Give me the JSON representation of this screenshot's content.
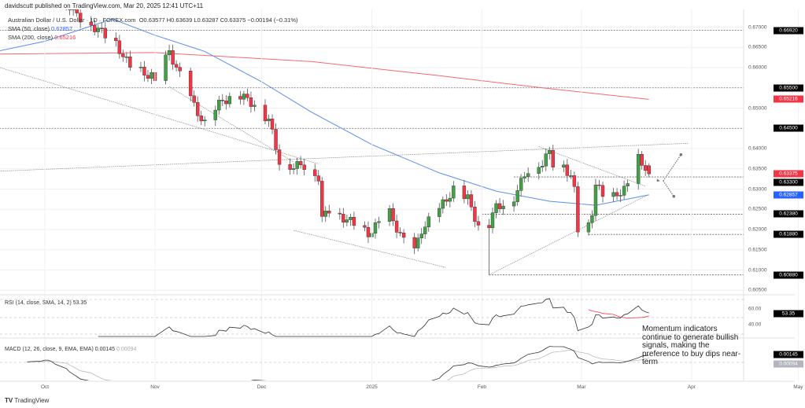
{
  "header": {
    "published": "davidscutt published on TradingView.com, Mar 20, 2025 12:41 UTC+11"
  },
  "legend": {
    "symbol": "Australian Dollar / U.S. Dollar · 1D · FOREX.com",
    "ohlc": "O0.63577 H0.63639 L0.63287 C0.63375 −0.00194 (−0.31%)",
    "sma50_label": "SMA (50, close)",
    "sma50_value": "0.62857",
    "sma200_label": "SMA (200, close)",
    "sma200_value": "0.65216"
  },
  "rsi": {
    "label": "RSI (14, close, SMA, 14, 2)",
    "value": "53.35",
    "ticks": [
      "60.00",
      "40.00"
    ]
  },
  "macd": {
    "label": "MACD (12, 26, close, 9, EMA, EMA)",
    "value": "0.00145",
    "signal": "0.00094"
  },
  "annotation": "Momentum indicators continue to generate bullish signals, making the preference to buy dips near-term",
  "footer": "TradingView",
  "colors": {
    "up": "#43a047",
    "down": "#f23645",
    "sma50": "#5b8def",
    "sma200": "#f26b6b",
    "tag": "#000000"
  },
  "chart_data": {
    "type": "candlestick",
    "price_ticks": [
      "0.67000",
      "0.66500",
      "0.66000",
      "0.65000",
      "0.64000",
      "0.63500",
      "0.63000",
      "0.62500",
      "0.62000",
      "0.61500",
      "0.61000",
      "0.60500"
    ],
    "level_tags": [
      {
        "v": "0.66920",
        "c": "#000000"
      },
      {
        "v": "0.65500",
        "c": "#000000"
      },
      {
        "v": "0.65216",
        "c": "#f23645"
      },
      {
        "v": "0.64500",
        "c": "#000000"
      },
      {
        "v": "0.63375",
        "c": "#f23645"
      },
      {
        "v": "0.63300",
        "c": "#000000"
      },
      {
        "v": "0.62857",
        "c": "#2962ff"
      },
      {
        "v": "0.62380",
        "c": "#000000"
      },
      {
        "v": "0.61880",
        "c": "#000000"
      },
      {
        "v": "0.60880",
        "c": "#000000"
      }
    ],
    "months": [
      [
        "Oct",
        "2024-10-01"
      ],
      [
        "Nov",
        "2024-11-01"
      ],
      [
        "Dec",
        "2024-12-01"
      ],
      [
        "2025",
        "2025-01-01"
      ],
      [
        "Feb",
        "2025-02-01"
      ],
      [
        "Mar",
        "2025-03-01"
      ],
      [
        "Apr",
        "2025-04-01"
      ],
      [
        "May",
        "2025-05-01"
      ]
    ],
    "closes": [
      [
        "2024-09-26",
        0.688
      ],
      [
        "2024-10-01",
        0.69
      ],
      [
        "2024-10-03",
        0.684
      ],
      [
        "2024-10-07",
        0.676
      ],
      [
        "2024-10-10",
        0.673
      ],
      [
        "2024-10-15",
        0.67
      ],
      [
        "2024-10-21",
        0.666
      ],
      [
        "2024-10-25",
        0.66
      ],
      [
        "2024-10-31",
        0.658
      ],
      [
        "2024-11-01",
        0.656
      ],
      [
        "2024-11-05",
        0.664
      ],
      [
        "2024-11-08",
        0.658
      ],
      [
        "2024-11-12",
        0.6505
      ],
      [
        "2024-11-15",
        0.646
      ],
      [
        "2024-11-20",
        0.652
      ],
      [
        "2024-11-25",
        0.653
      ],
      [
        "2024-11-29",
        0.651
      ],
      [
        "2024-12-03",
        0.647
      ],
      [
        "2024-12-06",
        0.637
      ],
      [
        "2024-12-10",
        0.6355
      ],
      [
        "2024-12-13",
        0.636
      ],
      [
        "2024-12-17",
        0.633
      ],
      [
        "2024-12-18",
        0.6225
      ],
      [
        "2024-12-20",
        0.625
      ],
      [
        "2024-12-24",
        0.623
      ],
      [
        "2024-12-31",
        0.619
      ],
      [
        "2025-01-03",
        0.6215
      ],
      [
        "2025-01-06",
        0.624
      ],
      [
        "2025-01-10",
        0.617
      ],
      [
        "2025-01-13",
        0.6145
      ],
      [
        "2025-01-15",
        0.62
      ],
      [
        "2025-01-20",
        0.625
      ],
      [
        "2025-01-24",
        0.63
      ],
      [
        "2025-01-28",
        0.6275
      ],
      [
        "2025-01-31",
        0.621
      ],
      [
        "2025-02-03",
        0.6215
      ],
      [
        "2025-02-05",
        0.6255
      ],
      [
        "2025-02-10",
        0.628
      ],
      [
        "2025-02-14",
        0.635
      ],
      [
        "2025-02-18",
        0.6365
      ],
      [
        "2025-02-20",
        0.639
      ],
      [
        "2025-02-21",
        0.6365
      ],
      [
        "2025-02-24",
        0.636
      ],
      [
        "2025-02-26",
        0.633
      ],
      [
        "2025-02-27",
        0.6295
      ],
      [
        "2025-02-28",
        0.62
      ],
      [
        "2025-03-03",
        0.621
      ],
      [
        "2025-03-04",
        0.6245
      ],
      [
        "2025-03-05",
        0.6315
      ],
      [
        "2025-03-07",
        0.628
      ],
      [
        "2025-03-10",
        0.628
      ],
      [
        "2025-03-12",
        0.6295
      ],
      [
        "2025-03-14",
        0.6305
      ],
      [
        "2025-03-17",
        0.6375
      ],
      [
        "2025-03-18",
        0.6355
      ],
      [
        "2025-03-19",
        0.63577
      ],
      [
        "2025-03-20",
        0.63375
      ]
    ],
    "sma50": [
      [
        "2024-09-12",
        0.663
      ],
      [
        "2024-10-01",
        0.6665
      ],
      [
        "2024-10-20",
        0.672
      ],
      [
        "2024-11-01",
        0.668
      ],
      [
        "2024-11-15",
        0.664
      ],
      [
        "2024-12-01",
        0.6565
      ],
      [
        "2024-12-15",
        0.649
      ],
      [
        "2025-01-01",
        0.641
      ],
      [
        "2025-01-20",
        0.634
      ],
      [
        "2025-02-05",
        0.6295
      ],
      [
        "2025-02-20",
        0.627
      ],
      [
        "2025-03-05",
        0.626
      ],
      [
        "2025-03-20",
        0.62857
      ]
    ],
    "sma200": [
      [
        "2024-09-12",
        0.6633
      ],
      [
        "2024-11-01",
        0.6637
      ],
      [
        "2024-12-15",
        0.6615
      ],
      [
        "2025-01-20",
        0.658
      ],
      [
        "2025-02-20",
        0.6548
      ],
      [
        "2025-03-20",
        0.65216
      ]
    ],
    "hlines": [
      [
        "2024-09-12",
        0.6692
      ],
      [
        "2024-09-12",
        0.655
      ],
      [
        "2024-09-12",
        0.645
      ],
      [
        "2025-02-10",
        0.633
      ],
      [
        "2025-02-01",
        0.6238
      ],
      [
        "2025-03-03",
        0.6188
      ],
      [
        "2025-02-03",
        0.6088
      ]
    ]
  }
}
